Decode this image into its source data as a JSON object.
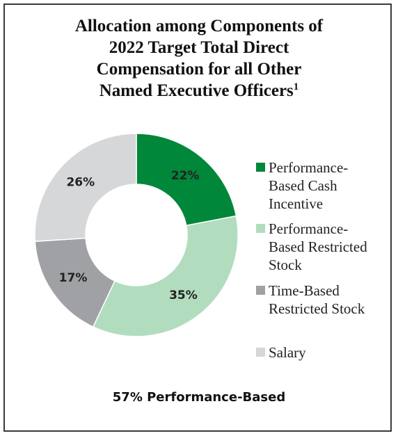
{
  "chart_data": {
    "type": "pie",
    "title_lines": [
      "Allocation among Components of",
      "2022 Target Total Direct",
      "Compensation for all Other",
      "Named Executive Officers"
    ],
    "title_footnote": "1",
    "slices": [
      {
        "label": "Performance-Based Cash Incentive",
        "legend_lines": "Performance-\nBased Cash\nIncentive",
        "value": 22,
        "display": "22%",
        "color": "#00873a"
      },
      {
        "label": "Performance-Based Restricted Stock",
        "legend_lines": "Performance-\nBased Restricted\nStock",
        "value": 35,
        "display": "35%",
        "color": "#b2dcbe"
      },
      {
        "label": "Time-Based Restricted Stock",
        "legend_lines": "Time-Based\nRestricted Stock",
        "value": 17,
        "display": "17%",
        "color": "#a0a1a4"
      },
      {
        "label": "Salary",
        "legend_lines": "Salary",
        "value": 26,
        "display": "26%",
        "color": "#d6d7d9"
      }
    ],
    "donut": true,
    "legend_position": "right",
    "footer": "57% Performance-Based"
  }
}
